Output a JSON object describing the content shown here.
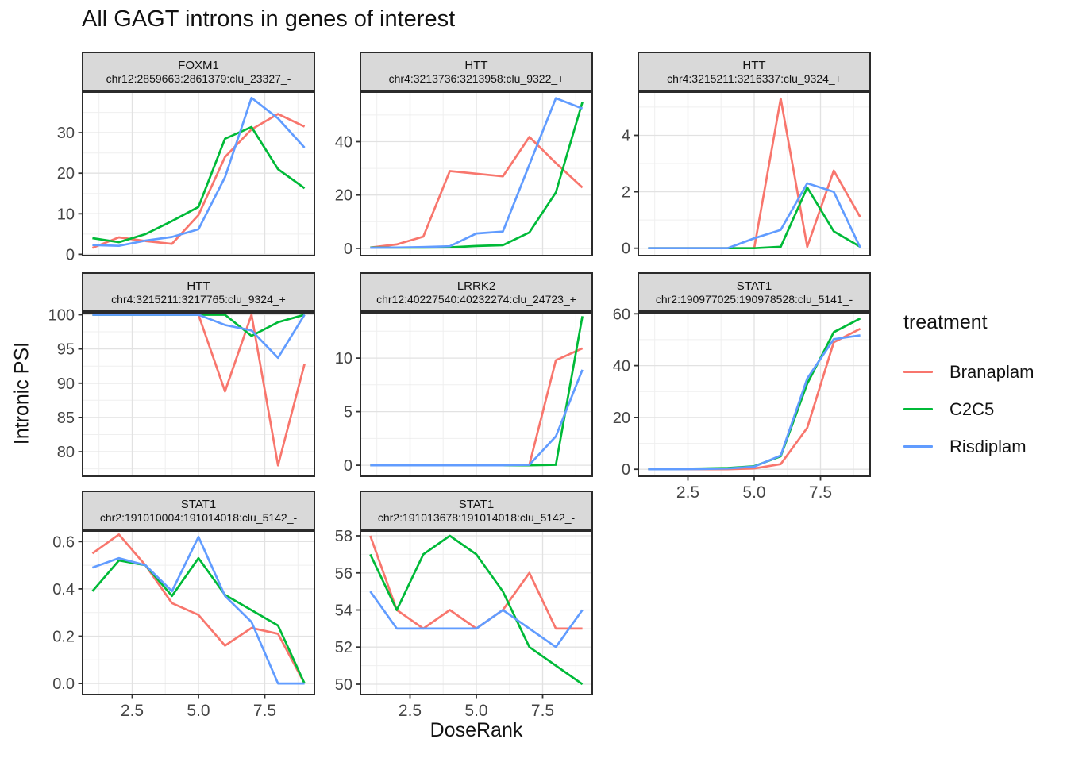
{
  "title": "All GAGT introns in genes of interest",
  "x_axis": {
    "label": "DoseRank",
    "tick_labels": [
      "2.5",
      "5.0",
      "7.5"
    ],
    "tick_values": [
      2.5,
      5.0,
      7.5
    ]
  },
  "y_axis": {
    "label": "Intronic PSI"
  },
  "legend": {
    "title": "treatment",
    "entries": [
      {
        "label": "Branaplam",
        "color": "#F8766D"
      },
      {
        "label": "C2C5",
        "color": "#00BA38"
      },
      {
        "label": "Risdiplam",
        "color": "#619CFF"
      }
    ]
  },
  "colors": {
    "branaplam": "#F8766D",
    "c2c5": "#00BA38",
    "risdiplam": "#619CFF",
    "strip_bg": "#D9D9D9",
    "panel_border": "#2B2B2B",
    "grid_major": "#E2E2E2",
    "grid_minor": "#EFEFEF",
    "tick_mark": "#333333",
    "tick_label": "#454545"
  },
  "chart_data": {
    "type": "line",
    "title": "All GAGT introns in genes of interest",
    "xlabel": "DoseRank",
    "ylabel": "Intronic PSI",
    "x": [
      1,
      2,
      3,
      4,
      5,
      6,
      7,
      8,
      9
    ],
    "xlim": [
      0.6,
      9.4
    ],
    "x_major_ticks": [
      2.5,
      5.0,
      7.5
    ],
    "x_minor_ticks": [
      1.25,
      3.75,
      6.25,
      8.75
    ],
    "series_names": [
      "Branaplam",
      "C2C5",
      "Risdiplam"
    ],
    "facets": [
      {
        "gene": "FOXM1",
        "locus": "chr12:2859663:2861379:clu_23327_-",
        "row": 0,
        "col": 0,
        "ylim": [
          -0.5,
          40.2
        ],
        "yticks": [
          0,
          10,
          20,
          30
        ],
        "ytick_labels": [
          "0",
          "10",
          "20",
          "30"
        ],
        "x_axis_shown": false,
        "series": {
          "Branaplam": [
            1.6,
            4.2,
            3.3,
            2.6,
            9.7,
            24.0,
            30.8,
            34.6,
            31.5
          ],
          "C2C5": [
            4.0,
            3.0,
            5.0,
            8.2,
            11.7,
            28.5,
            31.4,
            21.0,
            16.3
          ],
          "Risdiplam": [
            2.3,
            2.1,
            3.4,
            4.3,
            6.2,
            19.0,
            38.6,
            33.5,
            26.3
          ]
        }
      },
      {
        "gene": "HTT",
        "locus": "chr4:3213736:3213958:clu_9322_+",
        "row": 0,
        "col": 1,
        "ylim": [
          -3.0,
          58.9
        ],
        "yticks": [
          0,
          20,
          40
        ],
        "ytick_labels": [
          "0",
          "20",
          "40"
        ],
        "x_axis_shown": false,
        "series": {
          "Branaplam": [
            0.3,
            1.5,
            4.4,
            29.0,
            28.0,
            27.0,
            41.8,
            32.0,
            22.8
          ],
          "C2C5": [
            0.3,
            0.3,
            0.3,
            0.4,
            0.9,
            1.2,
            6.0,
            21.0,
            54.8
          ],
          "Risdiplam": [
            0.2,
            0.3,
            0.5,
            0.8,
            5.6,
            6.3,
            31.4,
            56.3,
            52.4
          ]
        }
      },
      {
        "gene": "HTT",
        "locus": "chr4:3215211:3216337:clu_9324_+",
        "row": 0,
        "col": 2,
        "ylim": [
          -0.29,
          5.56
        ],
        "yticks": [
          0,
          2,
          4
        ],
        "ytick_labels": [
          "0",
          "2",
          "4"
        ],
        "x_axis_shown": false,
        "series": {
          "Branaplam": [
            0,
            0,
            0,
            0,
            0,
            5.3,
            0.05,
            2.75,
            1.1
          ],
          "C2C5": [
            0,
            0,
            0,
            0,
            0,
            0.05,
            2.15,
            0.6,
            0.05
          ],
          "Risdiplam": [
            0,
            0,
            0,
            0,
            0.35,
            0.65,
            2.3,
            2.0,
            0.02
          ]
        }
      },
      {
        "gene": "HTT",
        "locus": "chr4:3215211:3217765:clu_9324_+",
        "row": 1,
        "col": 0,
        "ylim": [
          76.3,
          100.4
        ],
        "yticks": [
          80,
          85,
          90,
          95,
          100
        ],
        "ytick_labels": [
          "80",
          "85",
          "90",
          "95",
          "100"
        ],
        "x_axis_shown": false,
        "series": {
          "Branaplam": [
            100,
            100,
            100,
            100,
            100,
            88.8,
            100,
            78.0,
            92.8
          ],
          "C2C5": [
            100,
            100,
            100,
            100,
            100,
            100,
            96.9,
            98.9,
            100
          ],
          "Risdiplam": [
            100,
            100,
            100,
            100,
            100,
            98.5,
            97.7,
            93.7,
            100
          ]
        }
      },
      {
        "gene": "LRRK2",
        "locus": "chr12:40227540:40232274:clu_24723_+",
        "row": 1,
        "col": 1,
        "ylim": [
          -1.1,
          14.3
        ],
        "yticks": [
          0,
          5,
          10
        ],
        "ytick_labels": [
          "0",
          "5",
          "10"
        ],
        "x_axis_shown": false,
        "series": {
          "Branaplam": [
            0,
            0,
            0,
            0,
            0,
            0,
            0.05,
            9.8,
            10.9
          ],
          "C2C5": [
            0,
            0,
            0,
            0,
            0,
            0,
            0,
            0.05,
            13.9
          ],
          "Risdiplam": [
            0,
            0,
            0,
            0,
            0,
            0,
            0.05,
            2.7,
            8.9
          ]
        }
      },
      {
        "gene": "STAT1",
        "locus": "chr2:190977025:190978528:clu_5141_-",
        "row": 1,
        "col": 2,
        "ylim": [
          -3.0,
          60.7
        ],
        "yticks": [
          0,
          20,
          40,
          60
        ],
        "ytick_labels": [
          "0",
          "20",
          "40",
          "60"
        ],
        "x_axis_shown": true,
        "series": {
          "Branaplam": [
            0,
            0,
            0,
            0,
            0.3,
            2.0,
            16.0,
            49.0,
            54.2
          ],
          "C2C5": [
            0.2,
            0.2,
            0.3,
            0.5,
            1.2,
            5.0,
            33.0,
            52.9,
            58.2
          ],
          "Risdiplam": [
            0,
            0,
            0.1,
            0.3,
            1.0,
            5.3,
            35.0,
            50.2,
            51.7
          ]
        }
      },
      {
        "gene": "STAT1",
        "locus": "chr2:191010004:191014018:clu_5142_-",
        "row": 2,
        "col": 0,
        "ylim": [
          -0.05,
          0.648
        ],
        "yticks": [
          0,
          0.2,
          0.4,
          0.6
        ],
        "ytick_labels": [
          "0.0",
          "0.2",
          "0.4",
          "0.6"
        ],
        "x_axis_shown": true,
        "series": {
          "Branaplam": [
            0.55,
            0.63,
            0.5,
            0.34,
            0.29,
            0.16,
            0.235,
            0.21,
            0.0
          ],
          "C2C5": [
            0.39,
            0.52,
            0.5,
            0.37,
            0.53,
            0.375,
            0.31,
            0.245,
            0.0
          ],
          "Risdiplam": [
            0.49,
            0.53,
            0.5,
            0.39,
            0.62,
            0.37,
            0.26,
            0.0,
            0.0
          ]
        }
      },
      {
        "gene": "STAT1",
        "locus": "chr2:191013678:191014018:clu_5142_-",
        "row": 2,
        "col": 1,
        "ylim": [
          49.4,
          58.3
        ],
        "yticks": [
          50,
          52,
          54,
          56,
          58
        ],
        "ytick_labels": [
          "50",
          "52",
          "54",
          "56",
          "58"
        ],
        "x_axis_shown": true,
        "series": {
          "Branaplam": [
            58,
            54,
            53,
            54,
            53,
            54,
            56,
            53,
            53
          ],
          "C2C5": [
            57,
            54,
            57,
            58,
            57,
            55,
            52,
            51,
            50
          ],
          "Risdiplam": [
            55,
            53,
            53,
            53,
            53,
            54,
            53,
            52,
            54
          ]
        }
      }
    ]
  }
}
